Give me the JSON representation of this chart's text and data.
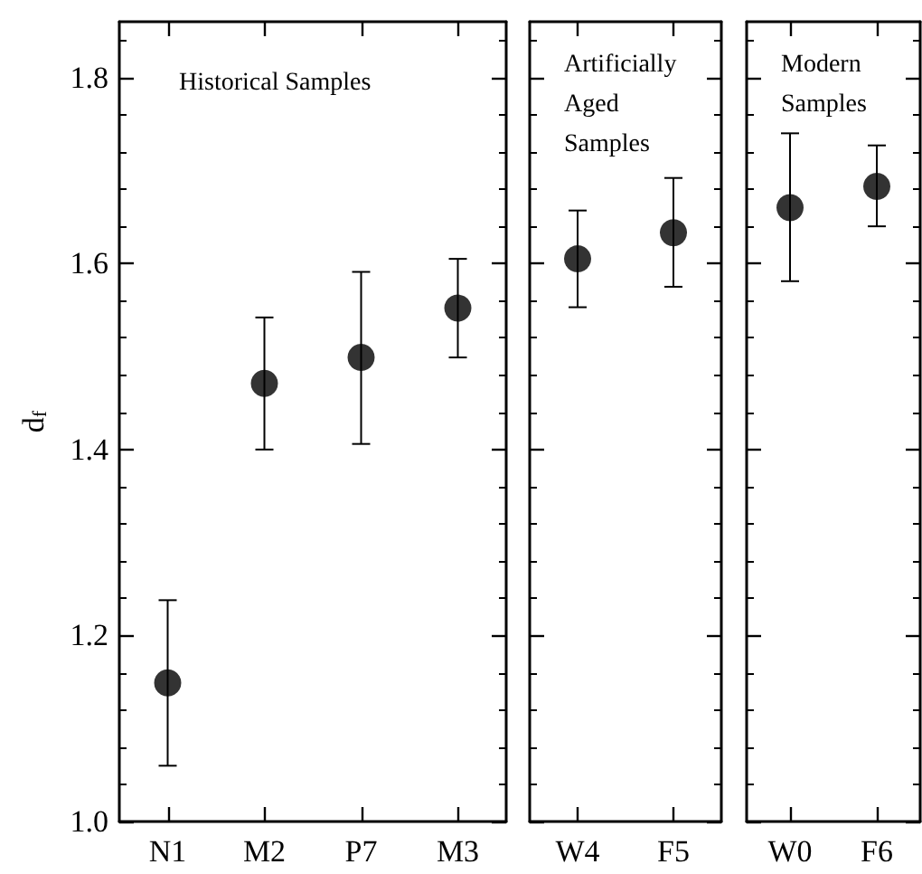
{
  "chart_data": [
    {
      "type": "scatter",
      "title": "Historical Samples",
      "ylabel": "d$_{f}$",
      "categories": [
        "N1",
        "M2",
        "P7",
        "M3"
      ],
      "marker": "circle",
      "series": [
        {
          "color": "#000000",
          "values": [
            1.149,
            1.471,
            1.499,
            1.552
          ],
          "errors": [
            [
              1.06,
              1.238
            ],
            [
              1.4,
              1.542
            ],
            [
              1.406,
              1.591
            ],
            [
              1.499,
              1.605
            ]
          ]
        }
      ],
      "ylim": [
        1.0,
        1.86
      ],
      "yticks": [
        {
          "value": 1.0,
          "label": "1.0"
        },
        {
          "value": 1.04,
          "label": null
        },
        {
          "value": 1.08,
          "label": null
        },
        {
          "value": 1.12,
          "label": null
        },
        {
          "value": 1.16,
          "label": null
        },
        1.2,
        {
          "value": 1.24,
          "label": null
        },
        {
          "value": 1.28,
          "label": null
        },
        {
          "value": 1.32,
          "label": null
        },
        {
          "value": 1.36,
          "label": null
        },
        1.4,
        {
          "value": 1.44,
          "label": null
        },
        {
          "value": 1.48,
          "label": null
        },
        {
          "value": 1.52,
          "label": null
        },
        {
          "value": 1.56,
          "label": null
        },
        1.6,
        {
          "value": 1.64,
          "label": null
        },
        {
          "value": 1.68,
          "label": null
        },
        {
          "value": 1.72,
          "label": null
        },
        {
          "value": 1.76,
          "label": null
        },
        1.8,
        {
          "value": 1.84,
          "label": null
        }
      ]
    },
    {
      "type": "scatter",
      "title": "Artificially\nAged\nSamples",
      "categories": [
        "W4",
        "F5"
      ],
      "marker": "circle",
      "tick_labels": "x",
      "series": [
        {
          "color": "#000000",
          "values": [
            1.605,
            1.633
          ],
          "errors": [
            [
              1.553,
              1.657
            ],
            [
              1.575,
              1.692
            ]
          ]
        }
      ],
      "ylim": [
        1.0,
        1.86
      ],
      "yticks": [
        1.0,
        {
          "value": 1.04,
          "label": null
        },
        {
          "value": 1.08,
          "label": null
        },
        {
          "value": 1.12,
          "label": null
        },
        {
          "value": 1.16,
          "label": null
        },
        1.2,
        {
          "value": 1.24,
          "label": null
        },
        {
          "value": 1.28,
          "label": null
        },
        {
          "value": 1.32,
          "label": null
        },
        {
          "value": 1.36,
          "label": null
        },
        1.4,
        {
          "value": 1.44,
          "label": null
        },
        {
          "value": 1.48,
          "label": null
        },
        {
          "value": 1.52,
          "label": null
        },
        {
          "value": 1.56,
          "label": null
        },
        1.6,
        {
          "value": 1.64,
          "label": null
        },
        {
          "value": 1.68,
          "label": null
        },
        {
          "value": 1.72,
          "label": null
        },
        {
          "value": 1.76,
          "label": null
        },
        1.8,
        {
          "value": 1.84,
          "label": null
        }
      ]
    },
    {
      "type": "scatter",
      "title": "Modern\nSamples",
      "categories": [
        "W0",
        "F6"
      ],
      "marker": "circle",
      "tick_labels": "x",
      "series": [
        {
          "color": "#000000",
          "values": [
            1.66,
            1.683
          ],
          "errors": [
            [
              1.581,
              1.74
            ],
            [
              1.64,
              1.727
            ]
          ]
        }
      ],
      "ylim": [
        1.0,
        1.86
      ],
      "yticks": [
        1.0,
        {
          "value": 1.04,
          "label": null
        },
        {
          "value": 1.08,
          "label": null
        },
        {
          "value": 1.12,
          "label": null
        },
        {
          "value": 1.16,
          "label": null
        },
        1.2,
        {
          "value": 1.24,
          "label": null
        },
        {
          "value": 1.28,
          "label": null
        },
        {
          "value": 1.32,
          "label": null
        },
        {
          "value": 1.36,
          "label": null
        },
        1.4,
        {
          "value": 1.44,
          "label": null
        },
        {
          "value": 1.48,
          "label": null
        },
        {
          "value": 1.52,
          "label": null
        },
        {
          "value": 1.56,
          "label": null
        },
        1.6,
        {
          "value": 1.64,
          "label": null
        },
        {
          "value": 1.68,
          "label": null
        },
        {
          "value": 1.72,
          "label": null
        },
        {
          "value": 1.76,
          "label": null
        },
        1.8,
        {
          "value": 1.84,
          "label": null
        }
      ]
    }
  ]
}
